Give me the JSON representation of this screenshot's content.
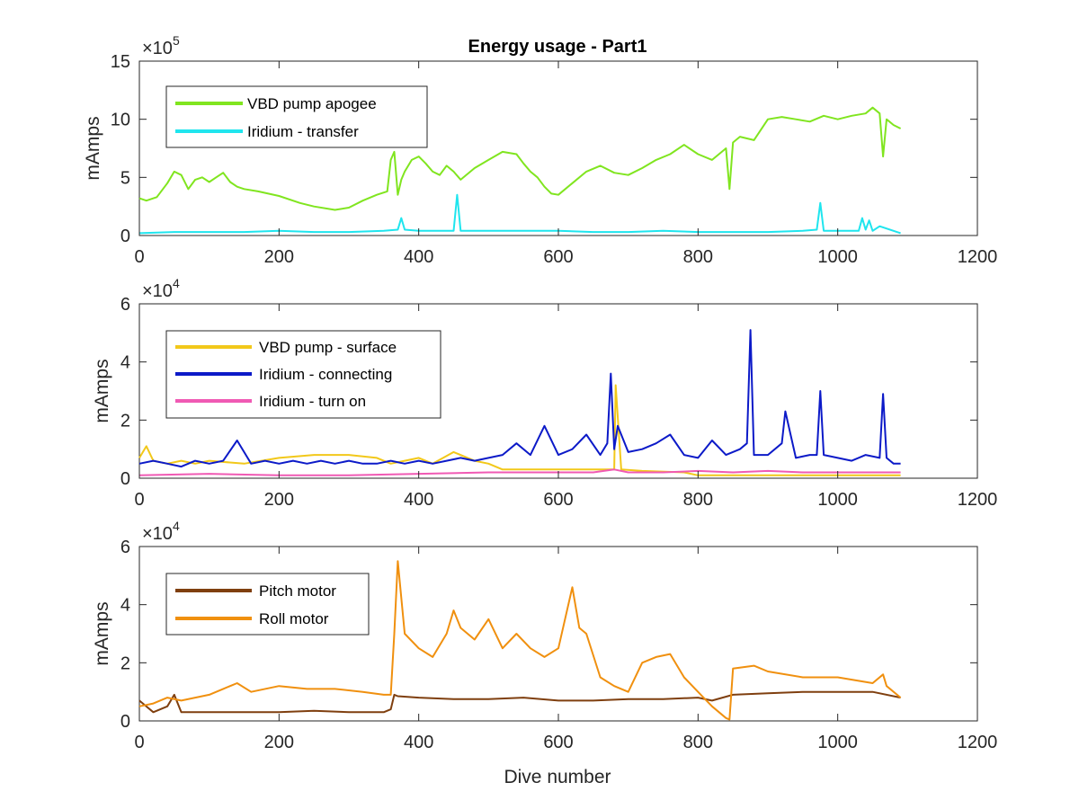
{
  "figure": {
    "title": "Energy usage - Part1",
    "xlabel": "Dive number"
  },
  "chart_data": [
    {
      "type": "line",
      "title": "Energy usage - Part1",
      "ylabel": "mAmps",
      "xlabel": "",
      "exponent_label": "×10⁵",
      "exponent_base": "×10",
      "exponent_power": "5",
      "xlim": [
        0,
        1200
      ],
      "ylim": [
        0,
        15
      ],
      "xticks": [
        "0",
        "200",
        "400",
        "600",
        "800",
        "1000",
        "1200"
      ],
      "yticks": [
        "0",
        "5",
        "10",
        "15"
      ],
      "legend_position": "top-left",
      "grid": false,
      "series": [
        {
          "name": "VBD pump apogee",
          "color": "#80e51f",
          "x": [
            0,
            10,
            25,
            40,
            50,
            60,
            70,
            80,
            90,
            100,
            110,
            120,
            130,
            140,
            150,
            170,
            200,
            230,
            250,
            280,
            300,
            320,
            340,
            355,
            360,
            365,
            370,
            375,
            380,
            390,
            400,
            410,
            420,
            430,
            440,
            450,
            460,
            480,
            500,
            520,
            540,
            550,
            560,
            570,
            580,
            590,
            600,
            620,
            640,
            660,
            680,
            700,
            720,
            740,
            760,
            780,
            800,
            820,
            840,
            845,
            850,
            860,
            880,
            900,
            920,
            940,
            960,
            980,
            1000,
            1020,
            1040,
            1050,
            1060,
            1065,
            1070,
            1080,
            1090
          ],
          "y": [
            3.2,
            3.0,
            3.3,
            4.5,
            5.5,
            5.2,
            4.0,
            4.8,
            5.0,
            4.6,
            5.0,
            5.4,
            4.6,
            4.2,
            4.0,
            3.8,
            3.4,
            2.8,
            2.5,
            2.2,
            2.4,
            3.0,
            3.5,
            3.8,
            6.5,
            7.2,
            3.5,
            4.8,
            5.5,
            6.5,
            6.8,
            6.2,
            5.5,
            5.2,
            6.0,
            5.5,
            4.8,
            5.8,
            6.5,
            7.2,
            7.0,
            6.2,
            5.5,
            5.0,
            4.2,
            3.6,
            3.5,
            4.5,
            5.5,
            6.0,
            5.4,
            5.2,
            5.8,
            6.5,
            7.0,
            7.8,
            7.0,
            6.5,
            7.5,
            4.0,
            8.0,
            8.5,
            8.2,
            10.0,
            10.2,
            10.0,
            9.8,
            10.3,
            10.0,
            10.3,
            10.5,
            11.0,
            10.5,
            6.8,
            10.0,
            9.5,
            9.2
          ]
        },
        {
          "name": "Iridium - transfer",
          "color": "#1fe5ee",
          "x": [
            0,
            50,
            100,
            150,
            200,
            250,
            300,
            350,
            370,
            375,
            380,
            400,
            450,
            455,
            460,
            500,
            550,
            600,
            650,
            700,
            750,
            800,
            850,
            900,
            950,
            970,
            975,
            980,
            1000,
            1030,
            1035,
            1040,
            1045,
            1050,
            1060,
            1090
          ],
          "y": [
            0.2,
            0.3,
            0.3,
            0.3,
            0.4,
            0.3,
            0.3,
            0.4,
            0.5,
            1.5,
            0.5,
            0.4,
            0.4,
            3.5,
            0.4,
            0.4,
            0.4,
            0.4,
            0.3,
            0.3,
            0.4,
            0.3,
            0.3,
            0.3,
            0.4,
            0.5,
            2.8,
            0.4,
            0.4,
            0.4,
            1.5,
            0.5,
            1.3,
            0.4,
            0.8,
            0.2
          ]
        }
      ]
    },
    {
      "type": "line",
      "title": "",
      "ylabel": "mAmps",
      "xlabel": "",
      "exponent_label": "×10⁴",
      "exponent_base": "×10",
      "exponent_power": "4",
      "xlim": [
        0,
        1200
      ],
      "ylim": [
        0,
        6
      ],
      "xticks": [
        "0",
        "200",
        "400",
        "600",
        "800",
        "1000",
        "1200"
      ],
      "yticks": [
        "0",
        "2",
        "4",
        "6"
      ],
      "legend_position": "top-left",
      "grid": false,
      "series": [
        {
          "name": "VBD pump - surface",
          "color": "#f2c81a",
          "x": [
            0,
            10,
            20,
            40,
            60,
            80,
            100,
            150,
            200,
            250,
            300,
            340,
            360,
            380,
            400,
            420,
            450,
            480,
            500,
            520,
            560,
            600,
            650,
            680,
            682,
            690,
            720,
            780,
            800,
            850,
            900,
            950,
            1000,
            1050,
            1090
          ],
          "y": [
            0.7,
            1.1,
            0.6,
            0.5,
            0.6,
            0.5,
            0.6,
            0.5,
            0.7,
            0.8,
            0.8,
            0.7,
            0.5,
            0.6,
            0.7,
            0.5,
            0.9,
            0.6,
            0.5,
            0.3,
            0.3,
            0.3,
            0.3,
            0.3,
            3.2,
            0.3,
            0.25,
            0.2,
            0.1,
            0.1,
            0.1,
            0.1,
            0.1,
            0.1,
            0.1
          ]
        },
        {
          "name": "Iridium - connecting",
          "color": "#0c1ac8",
          "x": [
            0,
            20,
            40,
            60,
            80,
            100,
            120,
            140,
            160,
            180,
            200,
            220,
            240,
            260,
            280,
            300,
            320,
            340,
            360,
            380,
            400,
            420,
            440,
            460,
            480,
            500,
            520,
            540,
            560,
            580,
            600,
            620,
            640,
            660,
            670,
            675,
            680,
            685,
            700,
            720,
            740,
            760,
            780,
            800,
            820,
            840,
            860,
            870,
            875,
            880,
            900,
            920,
            925,
            940,
            960,
            970,
            975,
            980,
            1000,
            1020,
            1040,
            1060,
            1065,
            1070,
            1080,
            1090
          ],
          "y": [
            0.5,
            0.6,
            0.5,
            0.4,
            0.6,
            0.5,
            0.6,
            1.3,
            0.5,
            0.6,
            0.5,
            0.6,
            0.5,
            0.6,
            0.5,
            0.6,
            0.5,
            0.5,
            0.6,
            0.5,
            0.6,
            0.5,
            0.6,
            0.7,
            0.6,
            0.7,
            0.8,
            1.2,
            0.8,
            1.8,
            0.8,
            1.0,
            1.5,
            0.8,
            1.2,
            3.6,
            1.0,
            1.8,
            0.9,
            1.0,
            1.2,
            1.5,
            0.8,
            0.7,
            1.3,
            0.8,
            1.0,
            1.2,
            5.1,
            0.8,
            0.8,
            1.2,
            2.3,
            0.7,
            0.8,
            0.8,
            3.0,
            0.8,
            0.7,
            0.6,
            0.8,
            0.7,
            2.9,
            0.7,
            0.5,
            0.5
          ]
        },
        {
          "name": "Iridium - turn on",
          "color": "#f05ab4",
          "x": [
            0,
            100,
            200,
            300,
            400,
            500,
            550,
            600,
            650,
            680,
            700,
            750,
            800,
            850,
            900,
            950,
            1000,
            1050,
            1090
          ],
          "y": [
            0.1,
            0.15,
            0.1,
            0.1,
            0.15,
            0.2,
            0.2,
            0.2,
            0.2,
            0.3,
            0.2,
            0.2,
            0.25,
            0.2,
            0.25,
            0.2,
            0.2,
            0.2,
            0.2
          ]
        }
      ]
    },
    {
      "type": "line",
      "title": "",
      "ylabel": "mAmps",
      "xlabel": "Dive number",
      "exponent_label": "×10⁴",
      "exponent_base": "×10",
      "exponent_power": "4",
      "xlim": [
        0,
        1200
      ],
      "ylim": [
        0,
        6
      ],
      "xticks": [
        "0",
        "200",
        "400",
        "600",
        "800",
        "1000",
        "1200"
      ],
      "yticks": [
        "0",
        "2",
        "4",
        "6"
      ],
      "legend_position": "top-left",
      "grid": false,
      "series": [
        {
          "name": "Pitch motor",
          "color": "#7f3f0f",
          "x": [
            0,
            20,
            40,
            50,
            60,
            100,
            150,
            200,
            250,
            300,
            350,
            360,
            365,
            370,
            400,
            450,
            500,
            550,
            600,
            650,
            700,
            750,
            800,
            820,
            850,
            900,
            950,
            1000,
            1050,
            1090
          ],
          "y": [
            0.7,
            0.3,
            0.5,
            0.9,
            0.3,
            0.3,
            0.3,
            0.3,
            0.35,
            0.3,
            0.3,
            0.4,
            0.9,
            0.85,
            0.8,
            0.75,
            0.75,
            0.8,
            0.7,
            0.7,
            0.75,
            0.75,
            0.8,
            0.7,
            0.9,
            0.95,
            1.0,
            1.0,
            1.0,
            0.8
          ]
        },
        {
          "name": "Roll motor",
          "color": "#f0900f",
          "x": [
            0,
            20,
            40,
            60,
            80,
            100,
            120,
            140,
            160,
            200,
            240,
            280,
            320,
            350,
            360,
            365,
            370,
            380,
            400,
            420,
            440,
            450,
            460,
            480,
            500,
            520,
            540,
            560,
            580,
            600,
            620,
            630,
            640,
            660,
            680,
            700,
            720,
            740,
            760,
            780,
            800,
            820,
            840,
            845,
            850,
            880,
            900,
            950,
            1000,
            1050,
            1065,
            1070,
            1090
          ],
          "y": [
            0.5,
            0.6,
            0.8,
            0.7,
            0.8,
            0.9,
            1.1,
            1.3,
            1.0,
            1.2,
            1.1,
            1.1,
            1.0,
            0.9,
            0.9,
            3.0,
            5.5,
            3.0,
            2.5,
            2.2,
            3.0,
            3.8,
            3.2,
            2.8,
            3.5,
            2.5,
            3.0,
            2.5,
            2.2,
            2.5,
            4.6,
            3.2,
            3.0,
            1.5,
            1.2,
            1.0,
            2.0,
            2.2,
            2.3,
            1.5,
            1.0,
            0.5,
            0.1,
            0.05,
            1.8,
            1.9,
            1.7,
            1.5,
            1.5,
            1.3,
            1.6,
            1.2,
            0.8
          ]
        }
      ]
    }
  ]
}
